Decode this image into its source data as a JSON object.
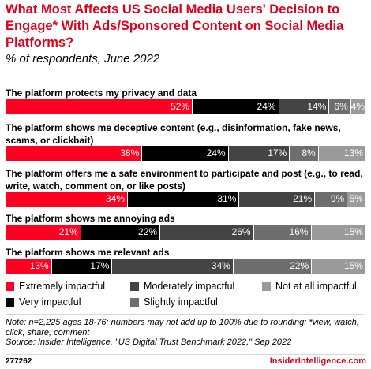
{
  "title": "What Most Affects US Social Media Users' Decision to Engage* With Ads/Sponsored Content on Social Media Platforms?",
  "subtitle": "% of respondents, June 2022",
  "chart_data": {
    "type": "bar",
    "orientation": "horizontal",
    "stacked": true,
    "categories": [
      "The platform protects my privacy and data",
      "The platform shows me deceptive content (e.g., disinformation, fake news, scams, or clickbait)",
      "The platform offers me a safe environment to participate and post (e.g., to read, write, watch, comment on, or like posts)",
      "The platform shows me annoying ads",
      "The platform shows me relevant ads"
    ],
    "series": [
      {
        "name": "Extremely impactful",
        "color": "#ff0022",
        "values": [
          52,
          38,
          34,
          21,
          13
        ]
      },
      {
        "name": "Very impactful",
        "color": "#000000",
        "values": [
          24,
          24,
          31,
          22,
          17
        ]
      },
      {
        "name": "Moderately impactful",
        "color": "#444444",
        "values": [
          14,
          17,
          21,
          26,
          34
        ]
      },
      {
        "name": "Slightly impactful",
        "color": "#6e6e6e",
        "values": [
          6,
          8,
          9,
          16,
          22
        ]
      },
      {
        "name": "Not at all impactful",
        "color": "#9a9a9a",
        "values": [
          4,
          13,
          5,
          15,
          15
        ]
      }
    ],
    "value_suffix": "%",
    "legend_position": "bottom"
  },
  "legend_order": [
    0,
    2,
    4,
    1,
    3
  ],
  "note": "Note: n=2,225 ages 18-76; numbers may not add up to 100% due to rounding; *view, watch, click, share, comment",
  "source": "Source: Insider Intelligence, \"US Digital Trust Benchmark 2022,\" Sep 2022",
  "chart_id": "277262",
  "brand": "InsiderIntelligence.com"
}
